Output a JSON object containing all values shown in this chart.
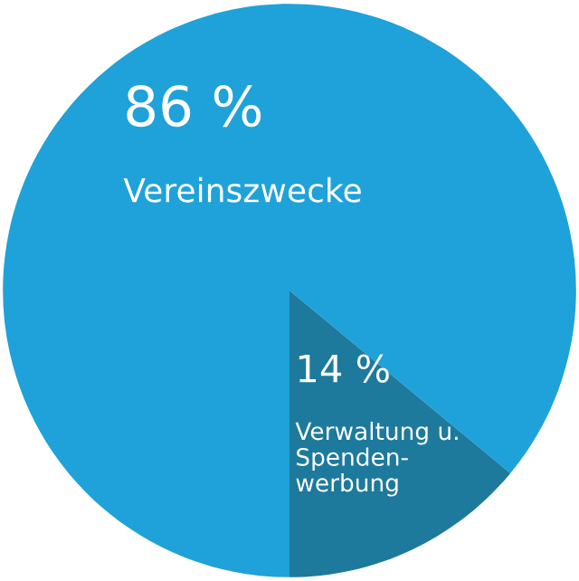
{
  "chart_data": {
    "type": "pie",
    "categories": [
      "Vereinszwecke",
      "Verwaltung u.\nSpenden-\nwerbung"
    ],
    "values": [
      86,
      14
    ],
    "colors": [
      "#1ea2d9",
      "#1d7a9c"
    ],
    "value_labels": [
      "86 %",
      "14 %"
    ],
    "legend": false
  }
}
